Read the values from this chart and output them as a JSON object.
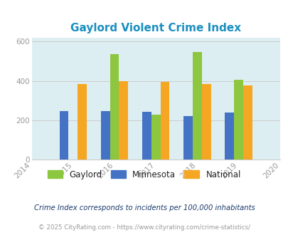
{
  "title": "Gaylord Violent Crime Index",
  "years": [
    2014,
    2015,
    2016,
    2017,
    2018,
    2019,
    2020
  ],
  "data_years": [
    2015,
    2016,
    2017,
    2018,
    2019
  ],
  "gaylord": [
    0,
    535,
    230,
    548,
    405
  ],
  "minnesota": [
    248,
    248,
    243,
    222,
    240
  ],
  "national": [
    383,
    400,
    394,
    383,
    377
  ],
  "bar_colors": {
    "gaylord": "#8dc63f",
    "minnesota": "#4472c4",
    "national": "#f5a623"
  },
  "background_color": "#ddeef2",
  "fig_background": "#ffffff",
  "ylim": [
    0,
    620
  ],
  "yticks": [
    0,
    200,
    400,
    600
  ],
  "title_color": "#1a8fc0",
  "title_fontsize": 11,
  "tick_color": "#999999",
  "grid_color": "#cccccc",
  "legend_labels": [
    "Gaylord",
    "Minnesota",
    "National"
  ],
  "legend_text_color": "#222222",
  "footnote1": "Crime Index corresponds to incidents per 100,000 inhabitants",
  "footnote2": "© 2025 CityRating.com - https://www.cityrating.com/crime-statistics/",
  "footnote1_color": "#1a3a6b",
  "footnote2_color": "#999999",
  "bar_width": 0.22
}
